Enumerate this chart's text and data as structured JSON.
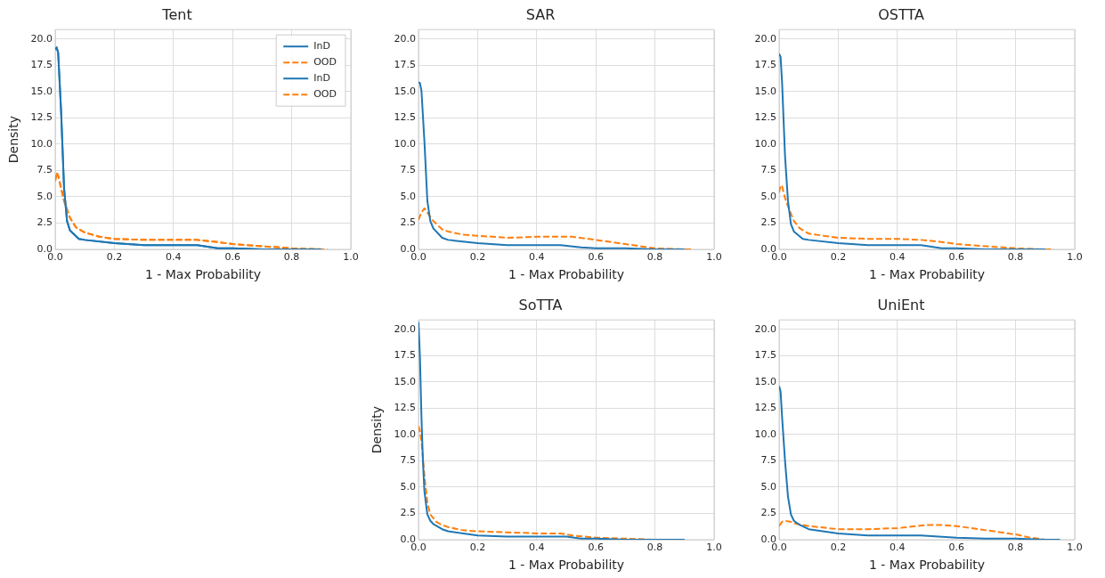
{
  "chart_data": [
    {
      "type": "line",
      "title": "Tent",
      "xlabel": "1 - Max Probability",
      "ylabel": "Density",
      "legend": "top right",
      "grid": true,
      "xlim": [
        0,
        1
      ],
      "xticks": [
        {
          "value": 0,
          "label": "0.0"
        },
        {
          "value": 0.2,
          "label": "0.2"
        },
        {
          "value": 0.4,
          "label": "0.4"
        },
        {
          "value": 0.6,
          "label": "0.6"
        },
        {
          "value": 0.8,
          "label": "0.8"
        },
        {
          "value": 1,
          "label": "1.0"
        }
      ],
      "ylim": [
        0,
        20.9
      ],
      "yticks": [
        {
          "value": 0,
          "label": "0.0"
        },
        {
          "value": 2.5,
          "label": "2.5"
        },
        {
          "value": 5,
          "label": "5.0"
        },
        {
          "value": 7.5,
          "label": "7.5"
        },
        {
          "value": 10,
          "label": "10.0"
        },
        {
          "value": 12.5,
          "label": "12.5"
        },
        {
          "value": 15,
          "label": "15.0"
        },
        {
          "value": 17.5,
          "label": "17.5"
        },
        {
          "value": 20,
          "label": "20.0"
        }
      ],
      "series": [
        {
          "name": "InD",
          "color": "#1f77b4",
          "line_style": "solid",
          "x": [
            0,
            0.005,
            0.01,
            0.02,
            0.03,
            0.04,
            0.05,
            0.08,
            0.1,
            0.2,
            0.3,
            0.4,
            0.48,
            0.55,
            0.6,
            0.7,
            0.8,
            0.9
          ],
          "values": [
            19.0,
            19.2,
            18.7,
            13.1,
            5.8,
            2.7,
            1.8,
            1.0,
            0.9,
            0.6,
            0.4,
            0.4,
            0.4,
            0.1,
            0.1,
            0,
            0,
            0
          ]
        },
        {
          "name": "OOD",
          "color": "#ff7f0e",
          "line_style": "dashed",
          "x": [
            0,
            0.005,
            0.01,
            0.02,
            0.03,
            0.05,
            0.07,
            0.1,
            0.15,
            0.2,
            0.3,
            0.4,
            0.48,
            0.55,
            0.6,
            0.7,
            0.8,
            0.9,
            0.92
          ],
          "values": [
            6.5,
            7.3,
            7.0,
            5.8,
            4.6,
            3.0,
            2.1,
            1.6,
            1.2,
            1.0,
            0.9,
            0.9,
            0.9,
            0.7,
            0.5,
            0.3,
            0.1,
            0,
            0
          ]
        },
        {
          "name": "InD",
          "color": "#1f77b4",
          "line_style": "solid",
          "x": [
            0,
            0.005,
            0.01,
            0.02,
            0.03,
            0.04,
            0.05,
            0.08,
            0.1,
            0.2,
            0.3,
            0.4,
            0.48,
            0.55,
            0.6,
            0.7,
            0.8,
            0.9
          ],
          "values": [
            19.0,
            19.2,
            18.7,
            13.1,
            5.8,
            2.7,
            1.8,
            1.0,
            0.9,
            0.6,
            0.4,
            0.4,
            0.4,
            0.1,
            0.1,
            0,
            0,
            0
          ]
        },
        {
          "name": "OOD",
          "color": "#ff7f0e",
          "line_style": "dashed",
          "x": [
            0,
            0.005,
            0.01,
            0.02,
            0.03,
            0.05,
            0.07,
            0.1,
            0.15,
            0.2,
            0.3,
            0.4,
            0.48,
            0.55,
            0.6,
            0.7,
            0.8,
            0.9,
            0.92
          ],
          "values": [
            6.5,
            7.3,
            7.0,
            5.8,
            4.6,
            3.0,
            2.1,
            1.6,
            1.2,
            1.0,
            0.9,
            0.9,
            0.9,
            0.7,
            0.5,
            0.3,
            0.1,
            0,
            0
          ]
        }
      ]
    },
    {
      "type": "line",
      "title": "SAR",
      "xlabel": "1 - Max Probability",
      "grid": true,
      "xlim": [
        0,
        1
      ],
      "xticks": [
        {
          "value": 0,
          "label": "0.0"
        },
        {
          "value": 0.2,
          "label": "0.2"
        },
        {
          "value": 0.4,
          "label": "0.4"
        },
        {
          "value": 0.6,
          "label": "0.6"
        },
        {
          "value": 0.8,
          "label": "0.8"
        },
        {
          "value": 1,
          "label": "1.0"
        }
      ],
      "ylim": [
        0,
        20.9
      ],
      "yticks": [
        {
          "value": 0,
          "label": "0.0"
        },
        {
          "value": 2.5,
          "label": "2.5"
        },
        {
          "value": 5,
          "label": "5.0"
        },
        {
          "value": 7.5,
          "label": "7.5"
        },
        {
          "value": 10,
          "label": "10.0"
        },
        {
          "value": 12.5,
          "label": "12.5"
        },
        {
          "value": 15,
          "label": "15.0"
        },
        {
          "value": 17.5,
          "label": "17.5"
        },
        {
          "value": 20,
          "label": "20.0"
        }
      ],
      "series": [
        {
          "color": "#1f77b4",
          "line_style": "solid",
          "x": [
            0,
            0.005,
            0.01,
            0.02,
            0.03,
            0.04,
            0.05,
            0.08,
            0.1,
            0.2,
            0.3,
            0.4,
            0.48,
            0.55,
            0.6,
            0.7,
            0.8,
            0.9
          ],
          "values": [
            15.9,
            15.8,
            15.1,
            10.3,
            4.6,
            2.7,
            2.0,
            1.1,
            0.9,
            0.6,
            0.4,
            0.4,
            0.4,
            0.2,
            0.1,
            0.1,
            0,
            0
          ]
        },
        {
          "color": "#ff7f0e",
          "line_style": "dashed",
          "x": [
            0,
            0.01,
            0.02,
            0.03,
            0.05,
            0.08,
            0.1,
            0.15,
            0.2,
            0.3,
            0.4,
            0.48,
            0.52,
            0.6,
            0.7,
            0.8,
            0.9,
            0.93
          ],
          "values": [
            2.8,
            3.5,
            3.9,
            3.5,
            2.7,
            1.9,
            1.7,
            1.4,
            1.3,
            1.1,
            1.2,
            1.2,
            1.2,
            0.9,
            0.5,
            0.1,
            0,
            0
          ]
        }
      ]
    },
    {
      "type": "line",
      "title": "OSTTA",
      "xlabel": "1 - Max Probability",
      "grid": true,
      "xlim": [
        0,
        1
      ],
      "xticks": [
        {
          "value": 0,
          "label": "0.0"
        },
        {
          "value": 0.2,
          "label": "0.2"
        },
        {
          "value": 0.4,
          "label": "0.4"
        },
        {
          "value": 0.6,
          "label": "0.6"
        },
        {
          "value": 0.8,
          "label": "0.8"
        },
        {
          "value": 1,
          "label": "1.0"
        }
      ],
      "ylim": [
        0,
        20.9
      ],
      "yticks": [
        {
          "value": 0,
          "label": "0.0"
        },
        {
          "value": 2.5,
          "label": "2.5"
        },
        {
          "value": 5,
          "label": "5.0"
        },
        {
          "value": 7.5,
          "label": "7.5"
        },
        {
          "value": 10,
          "label": "10.0"
        },
        {
          "value": 12.5,
          "label": "12.5"
        },
        {
          "value": 15,
          "label": "15.0"
        },
        {
          "value": 17.5,
          "label": "17.5"
        },
        {
          "value": 20,
          "label": "20.0"
        }
      ],
      "series": [
        {
          "color": "#1f77b4",
          "line_style": "solid",
          "x": [
            0,
            0.005,
            0.01,
            0.02,
            0.03,
            0.04,
            0.05,
            0.08,
            0.1,
            0.2,
            0.3,
            0.4,
            0.48,
            0.55,
            0.6,
            0.7,
            0.8,
            0.9
          ],
          "values": [
            18.6,
            18.3,
            15.9,
            8.9,
            4.6,
            2.4,
            1.7,
            1.0,
            0.9,
            0.6,
            0.4,
            0.4,
            0.4,
            0.1,
            0.1,
            0,
            0,
            0
          ]
        },
        {
          "color": "#ff7f0e",
          "line_style": "dashed",
          "x": [
            0,
            0.005,
            0.01,
            0.02,
            0.03,
            0.05,
            0.07,
            0.1,
            0.15,
            0.2,
            0.3,
            0.4,
            0.48,
            0.55,
            0.6,
            0.7,
            0.8,
            0.9,
            0.93
          ],
          "values": [
            5.4,
            6.1,
            6.0,
            4.9,
            4.1,
            2.7,
            2.0,
            1.5,
            1.3,
            1.1,
            1.0,
            1.0,
            0.9,
            0.7,
            0.5,
            0.3,
            0.1,
            0,
            0
          ]
        }
      ]
    },
    {
      "type": "line",
      "title": "SoTTA",
      "xlabel": "1 - Max Probability",
      "ylabel": "Density",
      "grid": true,
      "xlim": [
        0,
        1
      ],
      "xticks": [
        {
          "value": 0,
          "label": "0.0"
        },
        {
          "value": 0.2,
          "label": "0.2"
        },
        {
          "value": 0.4,
          "label": "0.4"
        },
        {
          "value": 0.6,
          "label": "0.6"
        },
        {
          "value": 0.8,
          "label": "0.8"
        },
        {
          "value": 1,
          "label": "1.0"
        }
      ],
      "ylim": [
        0,
        20.9
      ],
      "yticks": [
        {
          "value": 0,
          "label": "0.0"
        },
        {
          "value": 2.5,
          "label": "2.5"
        },
        {
          "value": 5,
          "label": "5.0"
        },
        {
          "value": 7.5,
          "label": "7.5"
        },
        {
          "value": 10,
          "label": "10.0"
        },
        {
          "value": 12.5,
          "label": "12.5"
        },
        {
          "value": 15,
          "label": "15.0"
        },
        {
          "value": 17.5,
          "label": "17.5"
        },
        {
          "value": 20,
          "label": "20.0"
        }
      ],
      "series": [
        {
          "color": "#1f77b4",
          "line_style": "solid",
          "x": [
            0,
            0.005,
            0.01,
            0.015,
            0.02,
            0.03,
            0.04,
            0.05,
            0.08,
            0.1,
            0.2,
            0.3,
            0.4,
            0.5,
            0.55,
            0.6,
            0.7,
            0.8,
            0.9
          ],
          "values": [
            20.7,
            17.3,
            11.7,
            7.5,
            4.6,
            2.4,
            1.8,
            1.5,
            1.0,
            0.8,
            0.4,
            0.3,
            0.3,
            0.3,
            0.1,
            0.1,
            0,
            0,
            0
          ]
        },
        {
          "color": "#ff7f0e",
          "line_style": "dashed",
          "x": [
            0,
            0.005,
            0.01,
            0.02,
            0.03,
            0.04,
            0.06,
            0.08,
            0.1,
            0.15,
            0.2,
            0.3,
            0.4,
            0.48,
            0.52,
            0.6,
            0.7,
            0.8,
            0.9
          ],
          "values": [
            10.8,
            10.3,
            9.4,
            6.1,
            3.5,
            2.4,
            1.7,
            1.4,
            1.2,
            0.9,
            0.8,
            0.7,
            0.6,
            0.6,
            0.4,
            0.2,
            0.1,
            0,
            0
          ]
        }
      ]
    },
    {
      "type": "line",
      "title": "UniEnt",
      "xlabel": "1 - Max Probability",
      "grid": true,
      "xlim": [
        0,
        1
      ],
      "xticks": [
        {
          "value": 0,
          "label": "0.0"
        },
        {
          "value": 0.2,
          "label": "0.2"
        },
        {
          "value": 0.4,
          "label": "0.4"
        },
        {
          "value": 0.6,
          "label": "0.6"
        },
        {
          "value": 0.8,
          "label": "0.8"
        },
        {
          "value": 1,
          "label": "1.0"
        }
      ],
      "ylim": [
        0,
        20.9
      ],
      "yticks": [
        {
          "value": 0,
          "label": "0.0"
        },
        {
          "value": 2.5,
          "label": "2.5"
        },
        {
          "value": 5,
          "label": "5.0"
        },
        {
          "value": 7.5,
          "label": "7.5"
        },
        {
          "value": 10,
          "label": "10.0"
        },
        {
          "value": 12.5,
          "label": "12.5"
        },
        {
          "value": 15,
          "label": "15.0"
        },
        {
          "value": 17.5,
          "label": "17.5"
        },
        {
          "value": 20,
          "label": "20.0"
        }
      ],
      "series": [
        {
          "color": "#1f77b4",
          "line_style": "solid",
          "x": [
            0,
            0.005,
            0.01,
            0.02,
            0.03,
            0.04,
            0.05,
            0.07,
            0.1,
            0.2,
            0.3,
            0.4,
            0.48,
            0.6,
            0.7,
            0.8,
            0.9,
            0.95
          ],
          "values": [
            14.6,
            14.1,
            11.7,
            7.5,
            4.1,
            2.4,
            1.8,
            1.4,
            1.0,
            0.6,
            0.4,
            0.4,
            0.4,
            0.2,
            0.1,
            0.1,
            0,
            0
          ]
        },
        {
          "color": "#ff7f0e",
          "line_style": "dashed",
          "x": [
            0,
            0.01,
            0.02,
            0.04,
            0.06,
            0.1,
            0.2,
            0.3,
            0.4,
            0.5,
            0.55,
            0.6,
            0.7,
            0.8,
            0.85,
            0.9,
            0.95
          ],
          "values": [
            1.3,
            1.7,
            1.8,
            1.7,
            1.5,
            1.3,
            1.0,
            1.0,
            1.1,
            1.4,
            1.4,
            1.3,
            0.9,
            0.5,
            0.2,
            0,
            0
          ]
        }
      ]
    }
  ]
}
